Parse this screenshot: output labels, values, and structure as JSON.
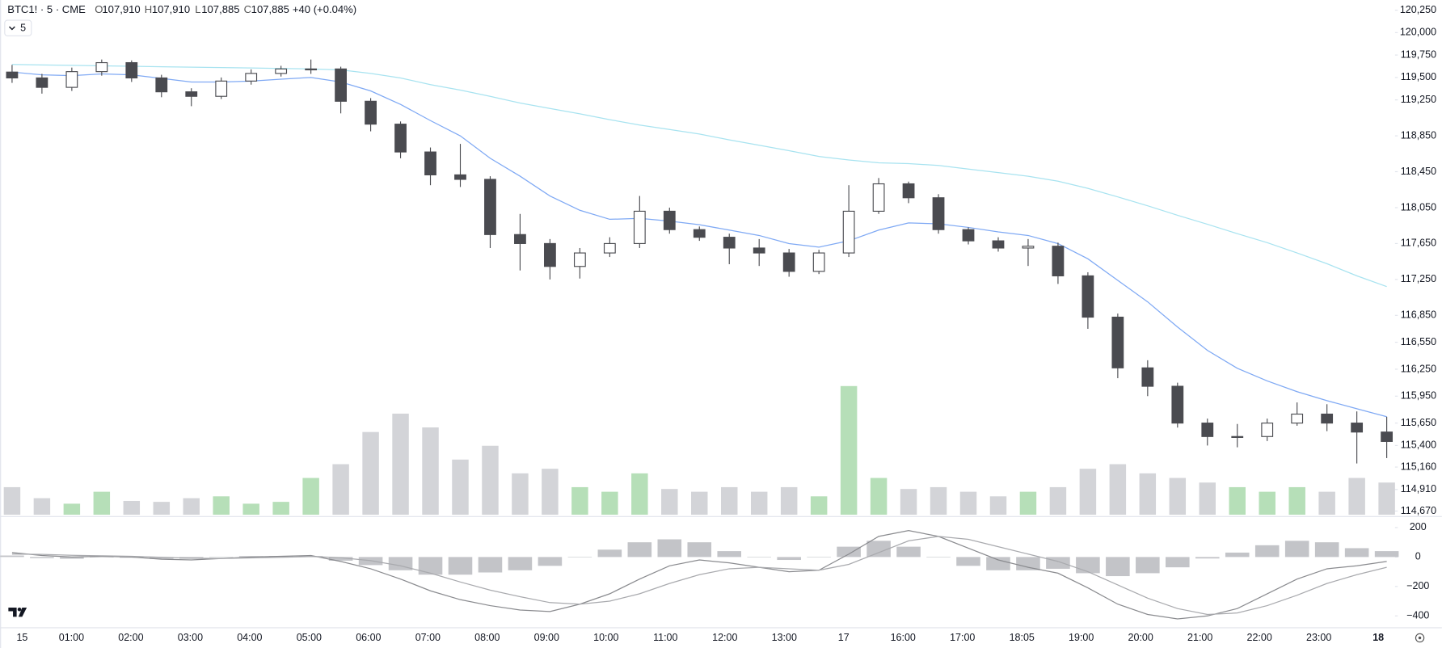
{
  "chart_data": [
    {
      "type": "candlestick",
      "title": "BTC1! · 5 · CME",
      "ohlc": [
        {
          "label": "O",
          "value": "107,910"
        },
        {
          "label": "H",
          "value": "107,910"
        },
        {
          "label": "L",
          "value": "107,885"
        },
        {
          "label": "C",
          "value": "107,885"
        }
      ],
      "change": "+40 (+0.04%)",
      "interval": "5",
      "open": [
        119560,
        119495,
        119390,
        119565,
        119665,
        119495,
        119340,
        119290,
        119460,
        119545,
        119595,
        119595,
        119235,
        118980,
        118670,
        118415,
        118365,
        117750,
        117650,
        117395,
        117545,
        117650,
        118010,
        117805,
        117720,
        117600,
        117545,
        117340,
        117545,
        118010,
        118315,
        118160,
        117805,
        117680,
        117600,
        117620,
        117290,
        116830,
        116265,
        116060,
        115650,
        115500,
        115500,
        115650,
        115750,
        115650,
        115550
      ],
      "high": [
        119640,
        119540,
        119610,
        119700,
        119690,
        119530,
        119380,
        119500,
        119590,
        119630,
        119700,
        119620,
        119270,
        119010,
        118720,
        118760,
        118400,
        117980,
        117700,
        117600,
        117720,
        118180,
        118050,
        117840,
        117760,
        117700,
        117590,
        117580,
        118300,
        118380,
        118340,
        118200,
        117830,
        117720,
        117700,
        117660,
        117330,
        116870,
        116350,
        116100,
        115700,
        115640,
        115700,
        115880,
        115860,
        115780,
        115720
      ],
      "low": [
        119440,
        119320,
        119350,
        119520,
        119450,
        119280,
        119180,
        119260,
        119420,
        119510,
        119540,
        119100,
        118900,
        118600,
        118300,
        118280,
        117600,
        117350,
        117250,
        117260,
        117500,
        117600,
        117760,
        117680,
        117420,
        117400,
        117280,
        117310,
        117500,
        117980,
        118100,
        117760,
        117640,
        117560,
        117400,
        117200,
        116700,
        116150,
        115950,
        115600,
        115400,
        115380,
        115450,
        115620,
        115560,
        115200,
        115260
      ],
      "close": [
        119495,
        119390,
        119565,
        119665,
        119495,
        119340,
        119290,
        119460,
        119545,
        119595,
        119595,
        119235,
        118980,
        118670,
        118415,
        118365,
        117750,
        117650,
        117395,
        117545,
        117650,
        118010,
        117805,
        117720,
        117600,
        117545,
        117340,
        117545,
        118010,
        118315,
        118160,
        117805,
        117680,
        117600,
        117620,
        117290,
        116830,
        116265,
        116060,
        115650,
        115500,
        115500,
        115650,
        115750,
        115650,
        115550,
        115445
      ],
      "volume": [
        30,
        18,
        12,
        25,
        15,
        14,
        18,
        20,
        12,
        14,
        40,
        55,
        90,
        110,
        95,
        60,
        75,
        45,
        50,
        30,
        25,
        45,
        28,
        25,
        30,
        25,
        30,
        20,
        140,
        40,
        28,
        30,
        25,
        20,
        25,
        30,
        50,
        55,
        45,
        40,
        35,
        30,
        25,
        30,
        25,
        40,
        35
      ],
      "up_color": "#ffffff",
      "down_color": "#4a4b50",
      "outline_color": "#4a4b50",
      "volume_up_color": "#b6dfb8",
      "volume_down_color": "#d3d4d8",
      "series": [
        {
          "color": "#7fa9f4",
          "values": [
            119560,
            119530,
            119520,
            119540,
            119530,
            119490,
            119450,
            119450,
            119460,
            119480,
            119500,
            119450,
            119350,
            119200,
            119020,
            118850,
            118600,
            118400,
            118180,
            118020,
            117920,
            117930,
            117900,
            117860,
            117800,
            117740,
            117650,
            117610,
            117680,
            117800,
            117880,
            117870,
            117830,
            117780,
            117740,
            117650,
            117480,
            117240,
            117000,
            116720,
            116460,
            116260,
            116120,
            116000,
            115900,
            115810,
            115720
          ]
        },
        {
          "color": "#a8e3f0",
          "values": [
            119645,
            119640,
            119635,
            119630,
            119625,
            119620,
            119615,
            119610,
            119605,
            119600,
            119595,
            119585,
            119545,
            119495,
            119420,
            119360,
            119290,
            119215,
            119155,
            119095,
            119030,
            118970,
            118920,
            118870,
            118805,
            118745,
            118685,
            118620,
            118580,
            118550,
            118540,
            118520,
            118480,
            118440,
            118400,
            118345,
            118265,
            118170,
            118070,
            117965,
            117865,
            117760,
            117660,
            117545,
            117425,
            117290,
            117170
          ]
        }
      ],
      "ylim": [
        114629,
        120363
      ],
      "yticks": [
        {
          "value": 120250,
          "label": "120,250"
        },
        {
          "value": 120000,
          "label": "120,000"
        },
        {
          "value": 119750,
          "label": "119,750"
        },
        {
          "value": 119500,
          "label": "119,500"
        },
        {
          "value": 119250,
          "label": "119,250"
        },
        {
          "value": 118850,
          "label": "118,850"
        },
        {
          "value": 118450,
          "label": "118,450"
        },
        {
          "value": 118050,
          "label": "118,050"
        },
        {
          "value": 117650,
          "label": "117,650"
        },
        {
          "value": 117250,
          "label": "117,250"
        },
        {
          "value": 116850,
          "label": "116,850"
        },
        {
          "value": 116550,
          "label": "116,550"
        },
        {
          "value": 116250,
          "label": "116,250"
        },
        {
          "value": 115950,
          "label": "115,950"
        },
        {
          "value": 115650,
          "label": "115,650"
        },
        {
          "value": 115400,
          "label": "115,400"
        },
        {
          "value": 115160,
          "label": "115,160"
        },
        {
          "value": 114910,
          "label": "114,910"
        },
        {
          "value": 114670,
          "label": "114,670"
        }
      ],
      "xticks": [
        "15",
        "01:00",
        "02:00",
        "03:00",
        "04:00",
        "05:00",
        "06:00",
        "07:00",
        "08:00",
        "09:00",
        "10:00",
        "11:00",
        "12:00",
        "13:00",
        "17",
        "16:00",
        "17:00",
        "18:05",
        "19:00",
        "20:00",
        "21:00",
        "22:00",
        "23:00",
        "18"
      ]
    },
    {
      "type": "macd",
      "series": [
        {
          "color": "#8a8b8f",
          "values": [
            30,
            10,
            0,
            5,
            0,
            -15,
            -20,
            -10,
            0,
            5,
            10,
            -30,
            -80,
            -150,
            -230,
            -290,
            -330,
            -360,
            -370,
            -320,
            -250,
            -150,
            -60,
            -20,
            -40,
            -70,
            -100,
            -90,
            20,
            140,
            180,
            140,
            60,
            -20,
            -70,
            -110,
            -210,
            -320,
            -390,
            -420,
            -400,
            -350,
            -250,
            -150,
            -80,
            -60,
            -30
          ]
        },
        {
          "color": "#a9aaae",
          "values": [
            20,
            18,
            12,
            8,
            5,
            -2,
            -8,
            -10,
            -6,
            -2,
            3,
            -5,
            -25,
            -60,
            -110,
            -170,
            -225,
            -270,
            -310,
            -320,
            -300,
            -250,
            -180,
            -120,
            -80,
            -70,
            -80,
            -90,
            -50,
            30,
            110,
            140,
            120,
            70,
            20,
            -30,
            -100,
            -190,
            -280,
            -350,
            -390,
            -380,
            -330,
            -260,
            -180,
            -120,
            -70
          ]
        }
      ],
      "histogram": {
        "color": "#c3c4c8",
        "values": [
          10,
          -8,
          -12,
          -3,
          -5,
          -13,
          -12,
          0,
          6,
          7,
          7,
          -25,
          -55,
          -90,
          -120,
          -120,
          -105,
          -90,
          -60,
          0,
          50,
          100,
          120,
          100,
          40,
          0,
          -20,
          0,
          70,
          110,
          70,
          0,
          -60,
          -90,
          -90,
          -80,
          -110,
          -130,
          -110,
          -70,
          -10,
          30,
          80,
          110,
          100,
          60,
          40
        ]
      },
      "ylim": [
        -512,
        256
      ],
      "yticks": [
        200,
        0,
        {
          "value": -200,
          "label": "−200"
        },
        {
          "value": -400,
          "label": "−400"
        }
      ]
    }
  ]
}
